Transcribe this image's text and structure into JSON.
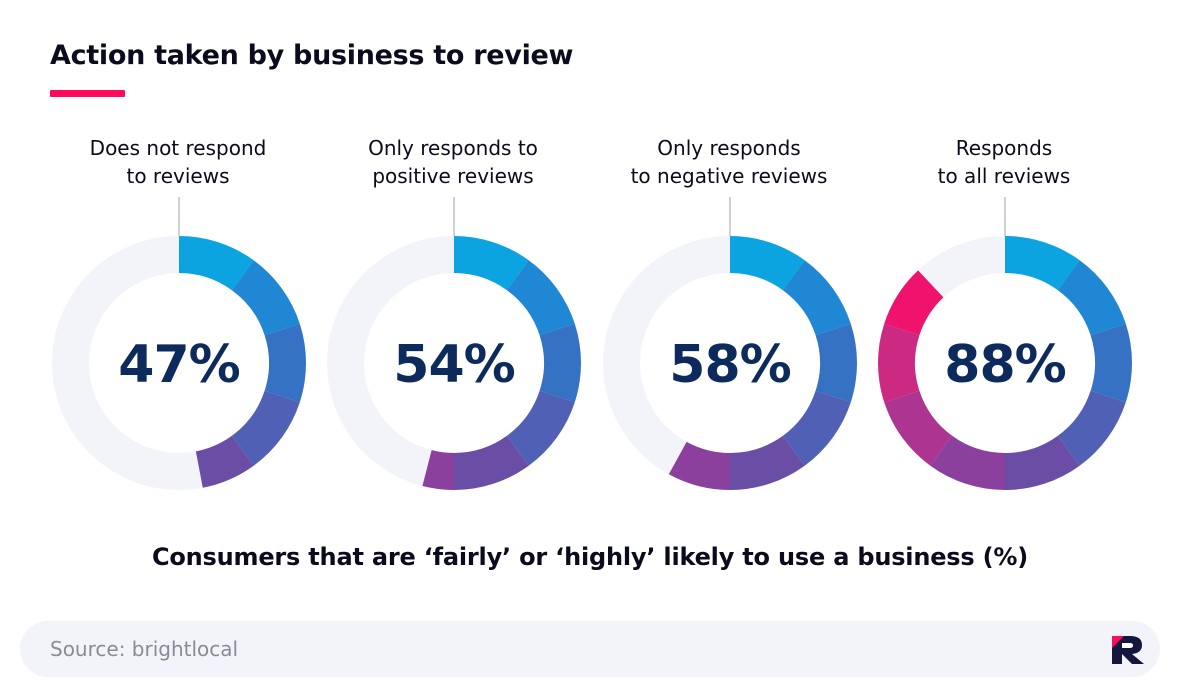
{
  "header": {
    "title": "Action taken by business to review",
    "accent_color": "#ff0a5c"
  },
  "chart_data": {
    "type": "donut",
    "title": "Action taken by business to review",
    "xlabel": "Consumers that are ‘fairly’ or ‘highly’ likely to use a business (%)",
    "unit": "%",
    "max": 100,
    "categories": [
      {
        "label_lines": [
          "Does not respond",
          "to reviews"
        ],
        "value": 47,
        "display": "47%"
      },
      {
        "label_lines": [
          "Only responds to",
          "positive reviews"
        ],
        "value": 54,
        "display": "54%"
      },
      {
        "label_lines": [
          "Only responds",
          "to negative reviews"
        ],
        "value": 58,
        "display": "58%"
      },
      {
        "label_lines": [
          "Responds",
          "to all reviews"
        ],
        "value": 88,
        "display": "88%"
      }
    ],
    "colors": {
      "gradient": [
        "#0ba3e0",
        "#1f87d4",
        "#3672c4",
        "#5060b4",
        "#6a4ea6",
        "#8a409c",
        "#ac3592",
        "#cc2a82",
        "#f0136e",
        "#ff0a5c"
      ],
      "track": "#f3f3fa",
      "value_text": "#0d2a5c"
    }
  },
  "footer": {
    "source": "Source: brightlocal",
    "logo_icon": "brand-logo-icon"
  }
}
